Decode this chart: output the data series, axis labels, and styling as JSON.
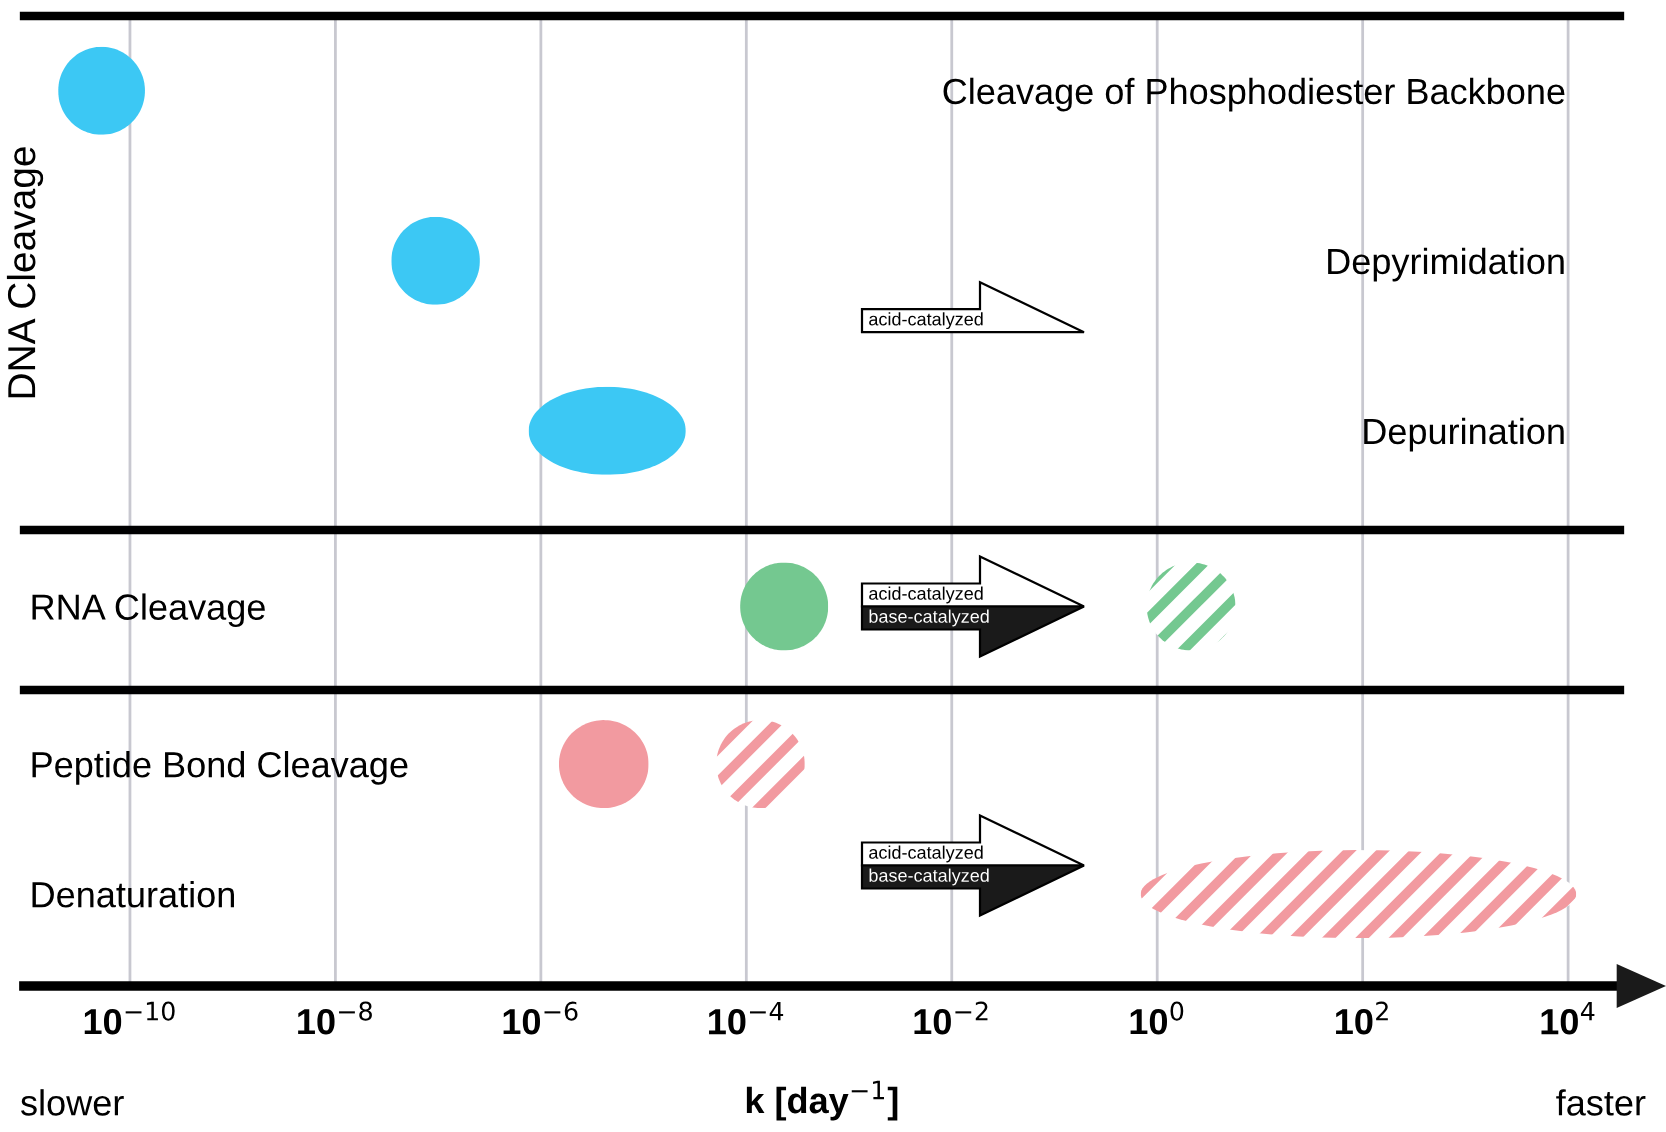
{
  "chart_data": [
    {
      "type": "bar",
      "orientation": "horizontal",
      "log": "x",
      "ylabel": "DNA Cleavage",
      "categories": [
        "Cleavage of Phosphodiester Backbone",
        "Depyrimidation",
        "Depurination"
      ],
      "series": [
        {
          "colors": [
            "#3cc8f4",
            "#3cc8f4",
            "#3cc8f4"
          ],
          "base": [
            2e-11,
            3.5e-08,
            7.6e-07
          ],
          "values": [
            1.2e-10,
            2.2e-07,
            2.5e-05
          ]
        }
      ],
      "xlim": [
        9.3e-12,
        32000.0
      ],
      "xticks": [
        {
          "value": 1e-10,
          "label": null
        },
        {
          "value": 1e-08,
          "label": null
        },
        {
          "value": 1e-06,
          "label": null
        },
        {
          "value": 0.0001,
          "label": null
        },
        {
          "value": 0.01,
          "label": null
        },
        {
          "value": 1,
          "label": null
        },
        {
          "value": 100,
          "label": null
        },
        {
          "value": 10000,
          "label": null
        }
      ],
      "grid": "x",
      "tick_labels": "y",
      "annotations": [
        "acid-catalyzed"
      ]
    },
    {
      "type": "bar",
      "orientation": "horizontal",
      "log": "x",
      "categories": [
        "RNA Cleavage"
      ],
      "series": [
        {
          "colors": [
            "#74c890"
          ],
          "base": [
            8.7e-05
          ],
          "values": [
            0.00054
          ]
        },
        {
          "colors": [
            "#74c890"
          ],
          "base": [
            0.79
          ],
          "values": [
            5.0
          ]
        }
      ],
      "xlim": [
        9.3e-12,
        32000.0
      ],
      "xticks": [
        {
          "value": 1e-10,
          "label": null
        },
        {
          "value": 1e-08,
          "label": null
        },
        {
          "value": 1e-06,
          "label": null
        },
        {
          "value": 0.0001,
          "label": null
        },
        {
          "value": 0.01,
          "label": null
        },
        {
          "value": 1,
          "label": null
        },
        {
          "value": 100,
          "label": null
        },
        {
          "value": 10000,
          "label": null
        }
      ],
      "grid": "x",
      "tick_labels": "y",
      "annotations": [
        "acid-catalyzed",
        "base-catalyzed"
      ]
    },
    {
      "type": "bar",
      "orientation": "horizontal",
      "log": "x",
      "xlabel": "k [day$^{−1}$]",
      "categories": [
        "Peptide Bond Cleavage",
        "Denaturation"
      ],
      "series": [
        {
          "colors": [
            "#f29aa0",
            "#f29aa0"
          ],
          "base": [
            1.5e-06,
            null
          ],
          "values": [
            9.7e-06,
            null
          ]
        },
        {
          "colors": [
            "#f29aa0",
            "#f29aa0"
          ],
          "base": [
            5.1e-05,
            0.69
          ],
          "values": [
            0.00032,
            12000
          ]
        }
      ],
      "xlim": [
        9.3e-12,
        32000.0
      ],
      "xticks": [
        {
          "value": 1e-10,
          "label": "10$^{−10}$"
        },
        {
          "value": 1e-08,
          "label": "10$^{−8}$"
        },
        {
          "value": 1e-06,
          "label": "10$^{−6}$"
        },
        {
          "value": 0.0001,
          "label": "10$^{−4}$"
        },
        {
          "value": 0.01,
          "label": "10$^{−2}$"
        },
        {
          "value": 1,
          "label": "10$^{0}$"
        },
        {
          "value": 100,
          "label": "10$^{2}$"
        },
        {
          "value": 10000,
          "label": "10$^{4}$"
        }
      ],
      "grid": "x",
      "annotations": [
        "acid-catalyzed",
        "base-catalyzed",
        "slower",
        "faster"
      ]
    }
  ]
}
